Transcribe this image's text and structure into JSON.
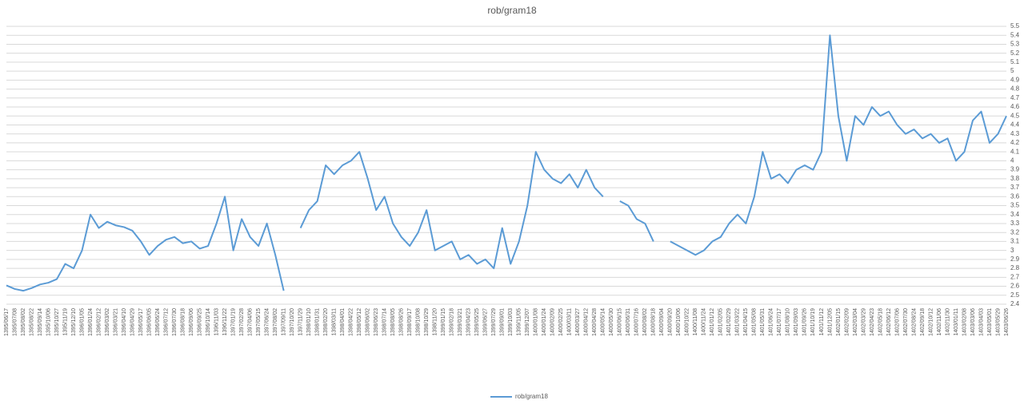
{
  "chart_data": {
    "type": "line",
    "title": "rob/gram18",
    "categories": [
      "1395/06/17",
      "1395/07/08",
      "1395/08/02",
      "1395/08/22",
      "1395/09/14",
      "1395/10/06",
      "1395/10/27",
      "1395/11/19",
      "1395/12/10",
      "1396/01/05",
      "1396/01/24",
      "1396/02/12",
      "1396/03/02",
      "1396/03/21",
      "1396/04/10",
      "1396/04/29",
      "1396/05/17",
      "1396/06/05",
      "1396/06/24",
      "1396/07/12",
      "1396/07/30",
      "1396/08/18",
      "1396/09/06",
      "1396/09/25",
      "1396/10/14",
      "1396/11/03",
      "1396/11/22",
      "1397/01/19",
      "1397/02/28",
      "1397/04/06",
      "1397/05/15",
      "1397/06/24",
      "1397/08/02",
      "1397/09/11",
      "1397/10/20",
      "1397/11/29",
      "1398/01/10",
      "1398/01/31",
      "1398/02/20",
      "1398/03/11",
      "1398/04/01",
      "1398/04/22",
      "1398/05/12",
      "1398/06/02",
      "1398/06/23",
      "1398/07/14",
      "1398/08/05",
      "1398/08/26",
      "1398/09/17",
      "1398/10/08",
      "1398/10/29",
      "1398/11/20",
      "1399/01/15",
      "1399/02/18",
      "1399/03/21",
      "1399/04/23",
      "1399/05/25",
      "1399/06/27",
      "1399/07/29",
      "1399/09/01",
      "1399/10/03",
      "1399/11/05",
      "1399/12/07",
      "1400/01/08",
      "1400/01/24",
      "1400/02/09",
      "1400/02/25",
      "1400/03/11",
      "1400/03/27",
      "1400/04/12",
      "1400/04/28",
      "1400/05/14",
      "1400/05/30",
      "1400/06/15",
      "1400/06/31",
      "1400/07/16",
      "1400/08/02",
      "1400/08/18",
      "1400/09/04",
      "1400/09/20",
      "1400/10/06",
      "1400/10/22",
      "1400/11/08",
      "1400/11/24",
      "1401/01/12",
      "1401/02/05",
      "1401/02/29",
      "1401/03/22",
      "1401/04/15",
      "1401/05/08",
      "1401/05/31",
      "1401/06/24",
      "1401/07/17",
      "1401/08/10",
      "1401/09/03",
      "1401/09/26",
      "1401/10/19",
      "1401/11/12",
      "1401/12/05",
      "1402/01/15",
      "1402/02/09",
      "1402/03/04",
      "1402/03/29",
      "1402/04/23",
      "1402/05/18",
      "1402/06/12",
      "1402/07/06",
      "1402/07/30",
      "1402/08/24",
      "1402/09/18",
      "1402/10/12",
      "1402/11/06",
      "1402/11/30",
      "1403/01/11",
      "1403/02/08",
      "1403/03/06",
      "1403/04/03",
      "1403/05/01",
      "1403/05/29",
      "1403/06/26"
    ],
    "series": [
      {
        "name": "rob/gram18",
        "color": "#5b9bd5",
        "values": [
          2.61,
          2.57,
          2.55,
          2.58,
          2.62,
          2.64,
          2.68,
          2.85,
          2.8,
          3.0,
          3.4,
          3.25,
          3.32,
          3.28,
          3.26,
          3.22,
          3.1,
          2.95,
          3.05,
          3.12,
          3.15,
          3.08,
          3.1,
          3.02,
          3.05,
          3.3,
          3.6,
          3.0,
          3.35,
          3.15,
          3.05,
          3.3,
          2.95,
          2.55,
          null,
          3.25,
          3.45,
          3.55,
          3.95,
          3.85,
          3.95,
          4.0,
          4.1,
          3.8,
          3.45,
          3.6,
          3.3,
          3.15,
          3.05,
          3.2,
          3.45,
          3.0,
          3.05,
          3.1,
          2.9,
          2.95,
          2.85,
          2.9,
          2.8,
          3.25,
          2.85,
          3.1,
          3.5,
          4.1,
          3.9,
          3.8,
          3.75,
          3.85,
          3.7,
          3.9,
          3.7,
          3.6,
          null,
          3.55,
          3.5,
          3.35,
          3.3,
          3.1,
          null,
          3.1,
          3.05,
          3.0,
          2.95,
          3.0,
          3.1,
          3.15,
          3.3,
          3.4,
          3.3,
          3.6,
          4.1,
          3.8,
          3.85,
          3.75,
          3.9,
          3.95,
          3.9,
          4.1,
          5.4,
          4.5,
          4.0,
          4.5,
          4.4,
          4.6,
          4.5,
          4.55,
          4.4,
          4.3,
          4.35,
          4.25,
          4.3,
          4.2,
          4.25,
          4.0,
          4.1,
          4.45,
          4.55,
          4.2,
          4.3,
          4.5
        ]
      }
    ],
    "ylim": [
      2.4,
      5.5
    ],
    "yticks": [
      2.4,
      2.5,
      2.6,
      2.7,
      2.8,
      2.9,
      3,
      3.1,
      3.2,
      3.3,
      3.4,
      3.5,
      3.6,
      3.7,
      3.8,
      3.9,
      4,
      4.1,
      4.2,
      4.3,
      4.4,
      4.5,
      4.6,
      4.7,
      4.8,
      4.9,
      5,
      5.1,
      5.2,
      5.3,
      5.4,
      5.5
    ],
    "grid": true,
    "legend": "bottom"
  }
}
